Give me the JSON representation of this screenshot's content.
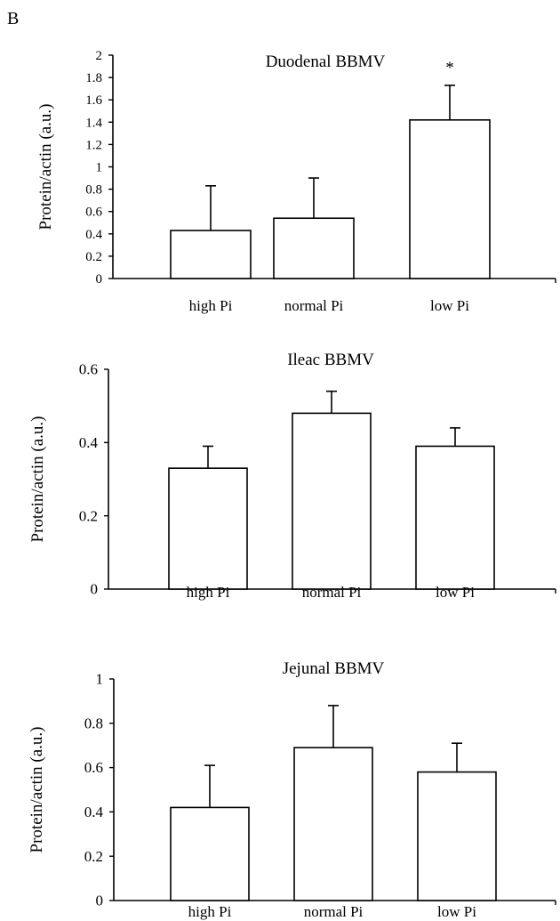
{
  "panel_label": "B",
  "chart_data": [
    {
      "type": "bar",
      "title": "Duodenal BBMV",
      "ylabel": "Protein/actin (a.u.)",
      "xlabel": "",
      "categories": [
        "high Pi",
        "normal Pi",
        "low Pi"
      ],
      "values": [
        0.43,
        0.54,
        1.42
      ],
      "errors": [
        0.4,
        0.36,
        0.31
      ],
      "annotations": [
        "",
        "",
        "*"
      ],
      "ylim": [
        0,
        2
      ],
      "yticks": [
        "0",
        "0.2",
        "0.4",
        "0.6",
        "0.8",
        "1",
        "1.2",
        "1.4",
        "1.6",
        "1.8",
        "2"
      ],
      "grid": false
    },
    {
      "type": "bar",
      "title": "Ileac BBMV",
      "ylabel": "Protein/actin (a.u.)",
      "xlabel": "",
      "categories": [
        "high Pi",
        "normal Pi",
        "low Pi"
      ],
      "values": [
        0.33,
        0.48,
        0.39
      ],
      "errors": [
        0.06,
        0.06,
        0.05
      ],
      "annotations": [
        "",
        "",
        ""
      ],
      "ylim": [
        0,
        0.6
      ],
      "yticks": [
        "0",
        "0.2",
        "0.4",
        "0.6"
      ],
      "grid": false
    },
    {
      "type": "bar",
      "title": "Jejunal BBMV",
      "ylabel": "Protein/actin (a.u.)",
      "xlabel": "",
      "categories": [
        "high Pi",
        "normal Pi",
        "low Pi"
      ],
      "values": [
        0.42,
        0.69,
        0.58
      ],
      "errors": [
        0.19,
        0.19,
        0.13
      ],
      "annotations": [
        "",
        "",
        ""
      ],
      "ylim": [
        0,
        1
      ],
      "yticks": [
        "0",
        "0.2",
        "0.4",
        "0.6",
        "0.8",
        "1"
      ],
      "grid": false
    }
  ]
}
